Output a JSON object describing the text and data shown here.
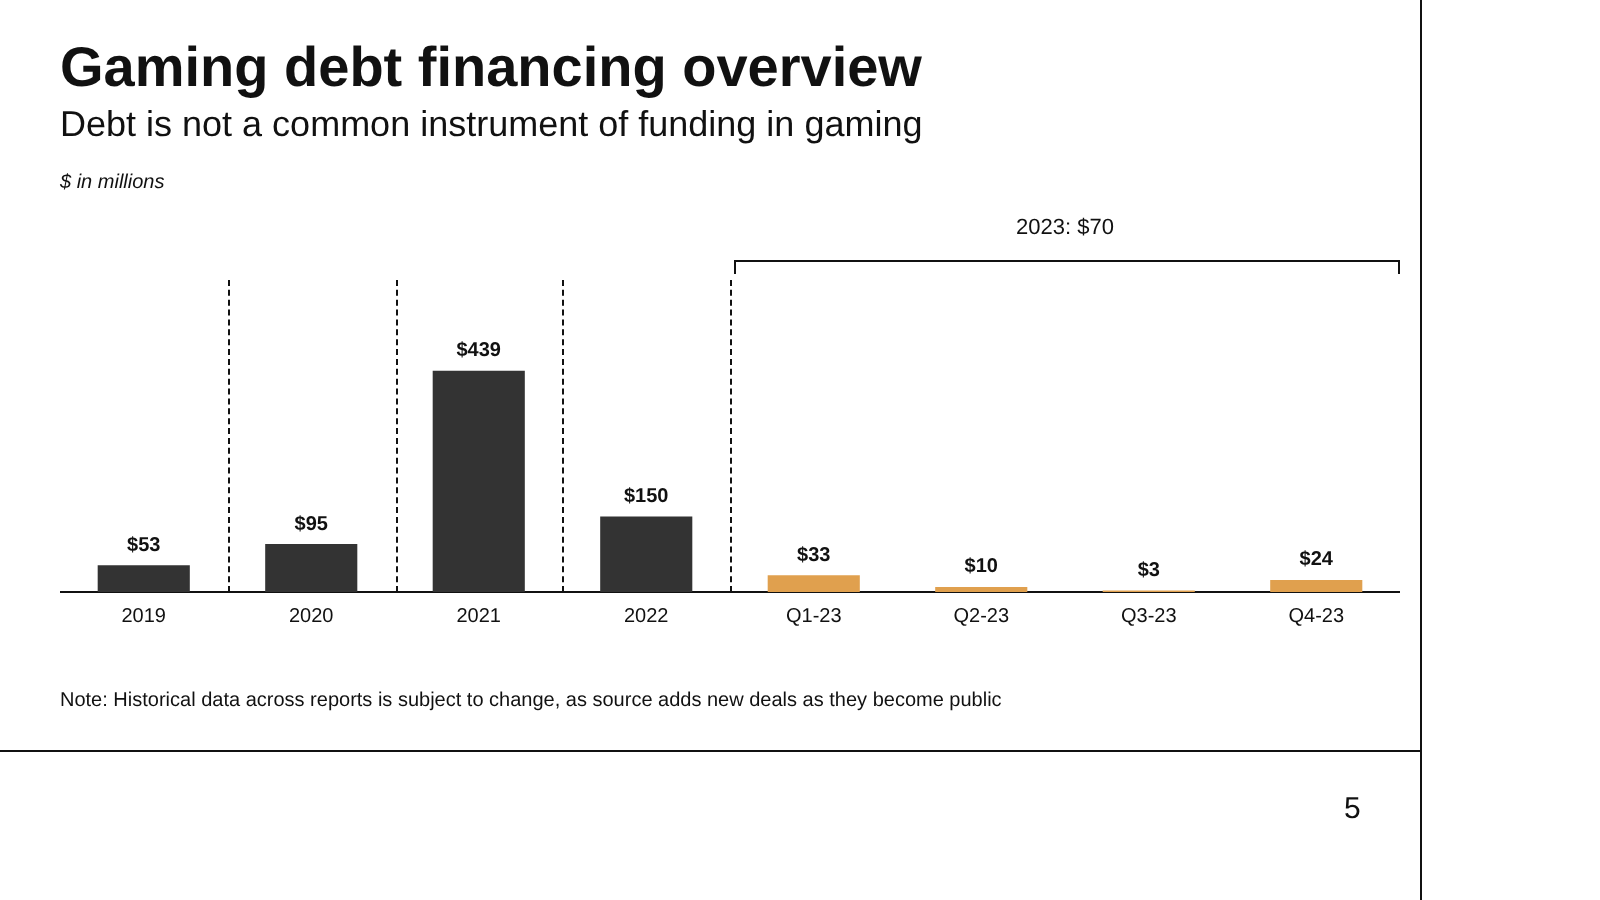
{
  "chart_data": {
    "type": "bar",
    "title": "Gaming debt financing overview",
    "subtitle": "Debt is not a common instrument of funding in gaming",
    "categories": [
      "2019",
      "2020",
      "2021",
      "2022",
      "Q1-23",
      "Q2-23",
      "Q3-23",
      "Q4-23"
    ],
    "values": [
      53,
      95,
      439,
      150,
      33,
      10,
      3,
      24
    ],
    "colors": [
      "#333333",
      "#333333",
      "#333333",
      "#333333",
      "#e0a04e",
      "#e0a04e",
      "#e0a04e",
      "#e0a04e"
    ],
    "value_labels": [
      "$53",
      "$95",
      "$439",
      "$150",
      "$33",
      "$10",
      "$3",
      "$24"
    ],
    "annotations": [
      "2023: $70",
      "$ in millions",
      "Note: Historical data across reports is subject to change, as source adds new deals as they become public",
      "5"
    ],
    "grid": false,
    "legend": false,
    "tick_labels": "x"
  }
}
